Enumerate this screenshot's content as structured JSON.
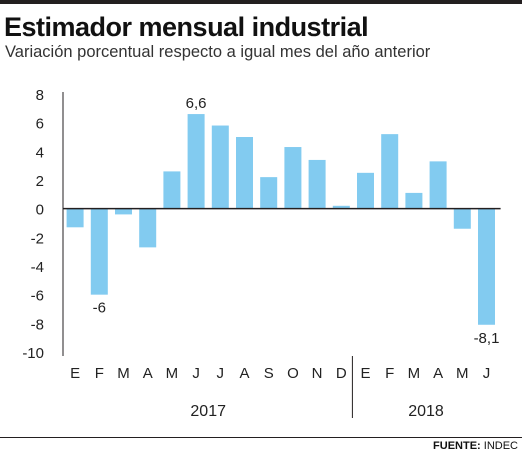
{
  "title": "Estimador mensual industrial",
  "subtitle": "Variación porcentual respecto a igual mes del año anterior",
  "source_label": "FUENTE:",
  "source_value": "INDEC",
  "colors": {
    "bar": "#82cbf0",
    "axis": "#231f20",
    "text": "#222222"
  },
  "chart_data": {
    "type": "bar",
    "title": "Estimador mensual industrial",
    "subtitle": "Variación porcentual respecto a igual mes del año anterior",
    "categories": [
      "E",
      "F",
      "M",
      "A",
      "M",
      "J",
      "J",
      "A",
      "S",
      "O",
      "N",
      "D",
      "E",
      "F",
      "M",
      "A",
      "M",
      "J"
    ],
    "values": [
      -1.3,
      -6.0,
      -0.4,
      -2.7,
      2.6,
      6.6,
      5.8,
      5.0,
      2.2,
      4.3,
      3.4,
      0.2,
      2.5,
      5.2,
      1.1,
      3.3,
      -1.4,
      -8.1
    ],
    "groups": [
      {
        "label": "2017",
        "start": 0,
        "end": 11
      },
      {
        "label": "2018",
        "start": 12,
        "end": 17
      }
    ],
    "data_labels": [
      {
        "index": 1,
        "text": "-6"
      },
      {
        "index": 5,
        "text": "6,6"
      },
      {
        "index": 17,
        "text": "-8,1"
      }
    ],
    "yticks": [
      8,
      6,
      4,
      2,
      0,
      -2,
      -4,
      -6,
      -8,
      -10
    ],
    "ylim": [
      -10,
      8
    ],
    "xlabel": "",
    "ylabel": "",
    "grid": false
  }
}
